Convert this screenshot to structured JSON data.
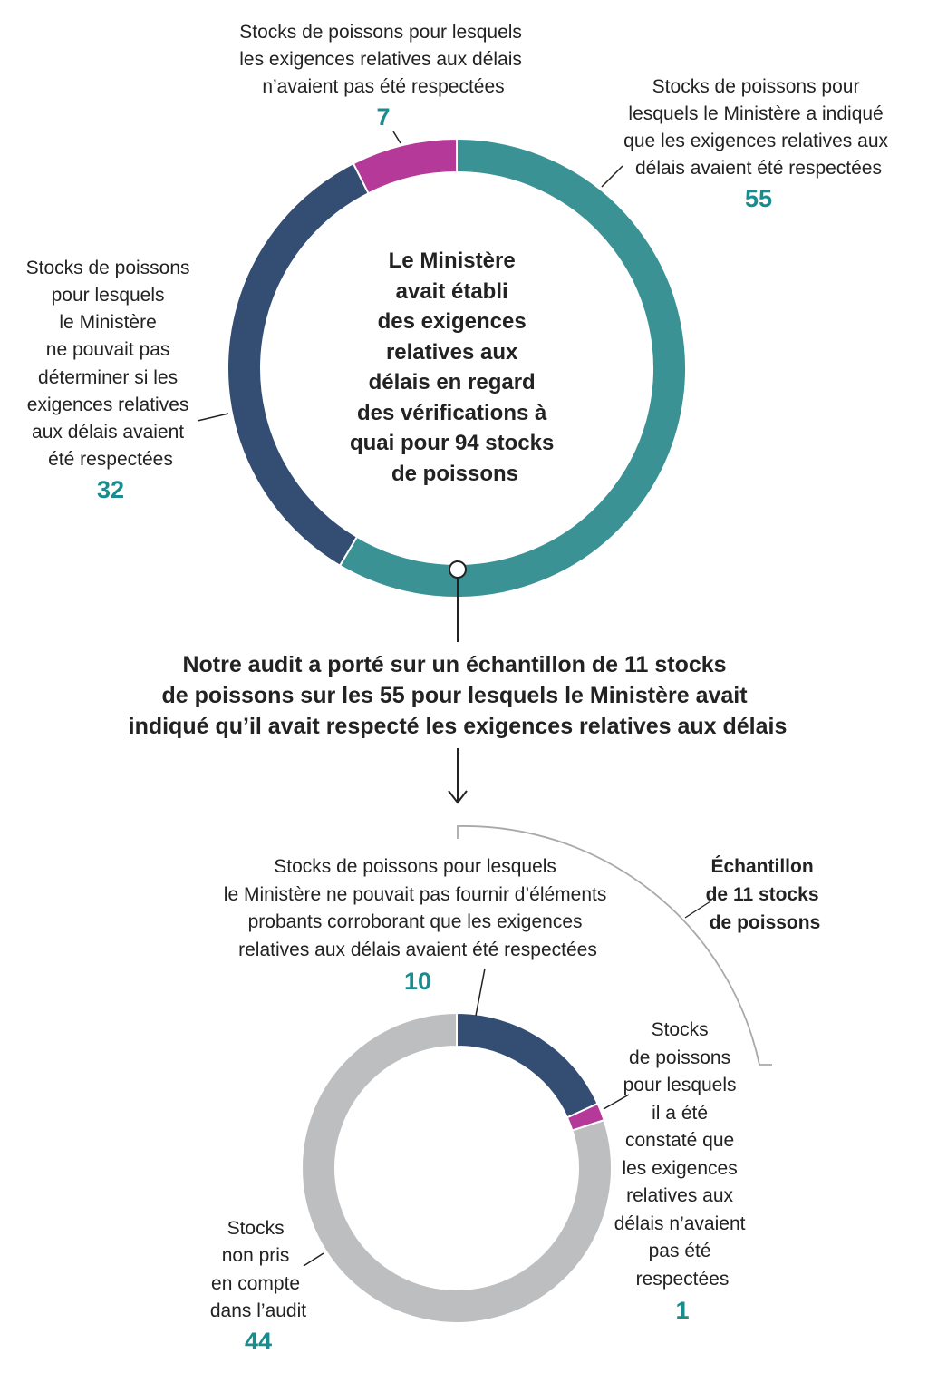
{
  "colors": {
    "teal": "#3a9295",
    "navy": "#334e72",
    "magenta": "#b53998",
    "grey": "#bcbec0",
    "number": "#1a8c8f",
    "text": "#222222"
  },
  "chart_data": [
    {
      "type": "pie",
      "center_label": [
        "Le Ministère",
        "avait établi",
        "des exigences",
        "relatives aux",
        "délais en regard",
        "des vérifications à",
        "quai pour 94 stocks",
        "de poissons"
      ],
      "slices": [
        {
          "label": [
            "Stocks de poissons pour",
            "lesquels le Ministère a indiqué",
            "que les exigences relatives aux",
            "délais avaient été respectées"
          ],
          "value": 55,
          "value_label": "55",
          "color": "#3a9295"
        },
        {
          "label": [
            "Stocks de poissons",
            "pour lesquels",
            "le Ministère",
            "ne pouvait pas",
            "déterminer si les",
            "exigences relatives",
            "aux délais avaient",
            "été respectées"
          ],
          "value": 32,
          "value_label": "32",
          "color": "#334e72"
        },
        {
          "label": [
            "Stocks de poissons pour lesquels",
            "les exigences relatives aux délais",
            "n’avaient pas été respectées"
          ],
          "value": 7,
          "value_label": "7",
          "color": "#b53998"
        }
      ]
    },
    {
      "type": "pie",
      "slices": [
        {
          "label": [
            "Stocks de poissons pour lesquels",
            "le Ministère ne pouvait pas fournir d’éléments",
            "probants corroborant que les exigences",
            "relatives aux délais avaient été respectées"
          ],
          "value": 10,
          "value_label": "10",
          "color": "#334e72"
        },
        {
          "label": [
            "Stocks",
            "de poissons",
            "pour lesquels",
            "il a été",
            "constaté que",
            "les exigences",
            "relatives aux",
            "délais n’avaient",
            "pas été",
            "respectées"
          ],
          "value": 1,
          "value_label": "1",
          "color": "#b53998"
        },
        {
          "label": [
            "Stocks",
            "non pris",
            "en compte",
            "dans l’audit"
          ],
          "value": 44,
          "value_label": "44",
          "color": "#bcbec0"
        }
      ],
      "bracket_label": [
        "Échantillon",
        "de 11 stocks",
        "de poissons"
      ]
    }
  ],
  "audit_statement": [
    "Notre audit a porté sur un échantillon de 11 stocks",
    "de poissons sur les 55 pour lesquels le Ministère avait",
    "indiqué qu’il avait respecté les exigences relatives aux délais"
  ]
}
